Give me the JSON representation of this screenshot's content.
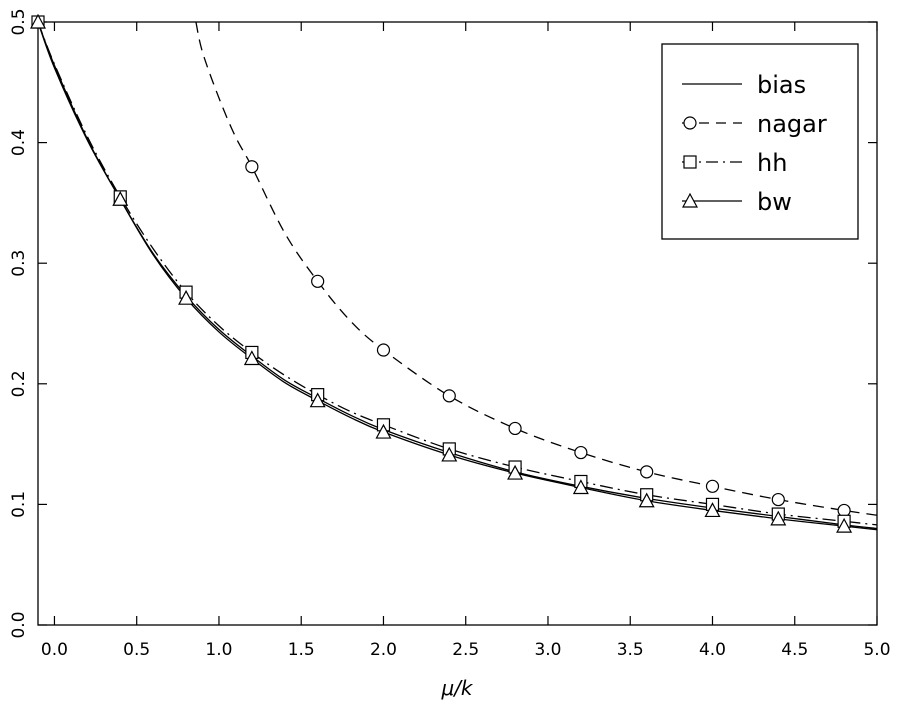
{
  "chart_data": {
    "type": "line",
    "title": "",
    "xlabel": "μ/k",
    "ylabel": "",
    "xlim": [
      -0.1,
      5.0
    ],
    "ylim": [
      0.0,
      0.5
    ],
    "xticks": [
      0.0,
      0.5,
      1.0,
      1.5,
      2.0,
      2.5,
      3.0,
      3.5,
      4.0,
      4.5,
      5.0
    ],
    "xtick_labels": [
      "0.0",
      "0.5",
      "1.0",
      "1.5",
      "2.0",
      "2.5",
      "3.0",
      "3.5",
      "4.0",
      "4.5",
      "5.0"
    ],
    "yticks": [
      0.0,
      0.1,
      0.2,
      0.3,
      0.4,
      0.5
    ],
    "ytick_labels": [
      "0.0",
      "0.1",
      "0.2",
      "0.3",
      "0.4",
      "0.5"
    ],
    "grid": false,
    "legend_position": "top-right",
    "series": [
      {
        "name": "bias",
        "line_style": "solid",
        "marker": "none",
        "x": [
          -0.1,
          0.0,
          0.2,
          0.4,
          0.6,
          0.8,
          1.0,
          1.2,
          1.4,
          1.6,
          1.8,
          2.0,
          2.4,
          2.8,
          3.2,
          3.6,
          4.0,
          4.4,
          4.8,
          5.0
        ],
        "values": [
          0.5,
          0.462,
          0.402,
          0.353,
          0.308,
          0.273,
          0.245,
          0.223,
          0.203,
          0.188,
          0.174,
          0.162,
          0.143,
          0.127,
          0.115,
          0.105,
          0.097,
          0.09,
          0.083,
          0.08
        ]
      },
      {
        "name": "nagar",
        "line_style": "dashed",
        "marker": "circle",
        "x": [
          0.86,
          0.9,
          1.0,
          1.1,
          1.2,
          1.4,
          1.6,
          1.8,
          2.0,
          2.4,
          2.8,
          3.2,
          3.6,
          4.0,
          4.4,
          4.8,
          5.0
        ],
        "values": [
          0.5,
          0.475,
          0.437,
          0.405,
          0.38,
          0.325,
          0.285,
          0.252,
          0.228,
          0.19,
          0.163,
          0.143,
          0.127,
          0.115,
          0.104,
          0.095,
          0.091
        ],
        "markers_x": [
          1.2,
          1.6,
          2.0,
          2.4,
          2.8,
          3.2,
          3.6,
          4.0,
          4.4,
          4.8
        ],
        "markers_y": [
          0.38,
          0.285,
          0.228,
          0.19,
          0.163,
          0.143,
          0.127,
          0.115,
          0.104,
          0.095
        ]
      },
      {
        "name": "hh",
        "line_style": "dashdot",
        "marker": "square",
        "x": [
          -0.1,
          0.0,
          0.2,
          0.4,
          0.6,
          0.8,
          1.0,
          1.2,
          1.4,
          1.6,
          1.8,
          2.0,
          2.4,
          2.8,
          3.2,
          3.6,
          4.0,
          4.4,
          4.8,
          5.0
        ],
        "values": [
          0.5,
          0.465,
          0.405,
          0.355,
          0.312,
          0.276,
          0.248,
          0.226,
          0.207,
          0.191,
          0.177,
          0.166,
          0.146,
          0.131,
          0.119,
          0.108,
          0.1,
          0.092,
          0.086,
          0.083
        ],
        "markers_x": [
          -0.1,
          0.4,
          0.8,
          1.2,
          1.6,
          2.0,
          2.4,
          2.8,
          3.2,
          3.6,
          4.0,
          4.4,
          4.8
        ],
        "markers_y": [
          0.5,
          0.355,
          0.276,
          0.226,
          0.191,
          0.166,
          0.146,
          0.131,
          0.119,
          0.108,
          0.1,
          0.092,
          0.086
        ]
      },
      {
        "name": "bw",
        "line_style": "solid",
        "marker": "triangle",
        "x": [
          -0.1,
          0.0,
          0.2,
          0.4,
          0.6,
          0.8,
          1.0,
          1.2,
          1.4,
          1.6,
          1.8,
          2.0,
          2.4,
          2.8,
          3.2,
          3.6,
          4.0,
          4.4,
          4.8,
          5.0
        ],
        "values": [
          0.5,
          0.464,
          0.403,
          0.353,
          0.307,
          0.271,
          0.243,
          0.221,
          0.201,
          0.186,
          0.172,
          0.16,
          0.141,
          0.126,
          0.114,
          0.103,
          0.095,
          0.088,
          0.082,
          0.079
        ],
        "markers_x": [
          -0.1,
          0.4,
          0.8,
          1.2,
          1.6,
          2.0,
          2.4,
          2.8,
          3.2,
          3.6,
          4.0,
          4.4,
          4.8
        ],
        "markers_y": [
          0.5,
          0.353,
          0.271,
          0.221,
          0.186,
          0.16,
          0.141,
          0.126,
          0.114,
          0.103,
          0.095,
          0.088,
          0.082
        ]
      }
    ],
    "colors": {
      "line": "#000000",
      "background": "#ffffff"
    }
  }
}
